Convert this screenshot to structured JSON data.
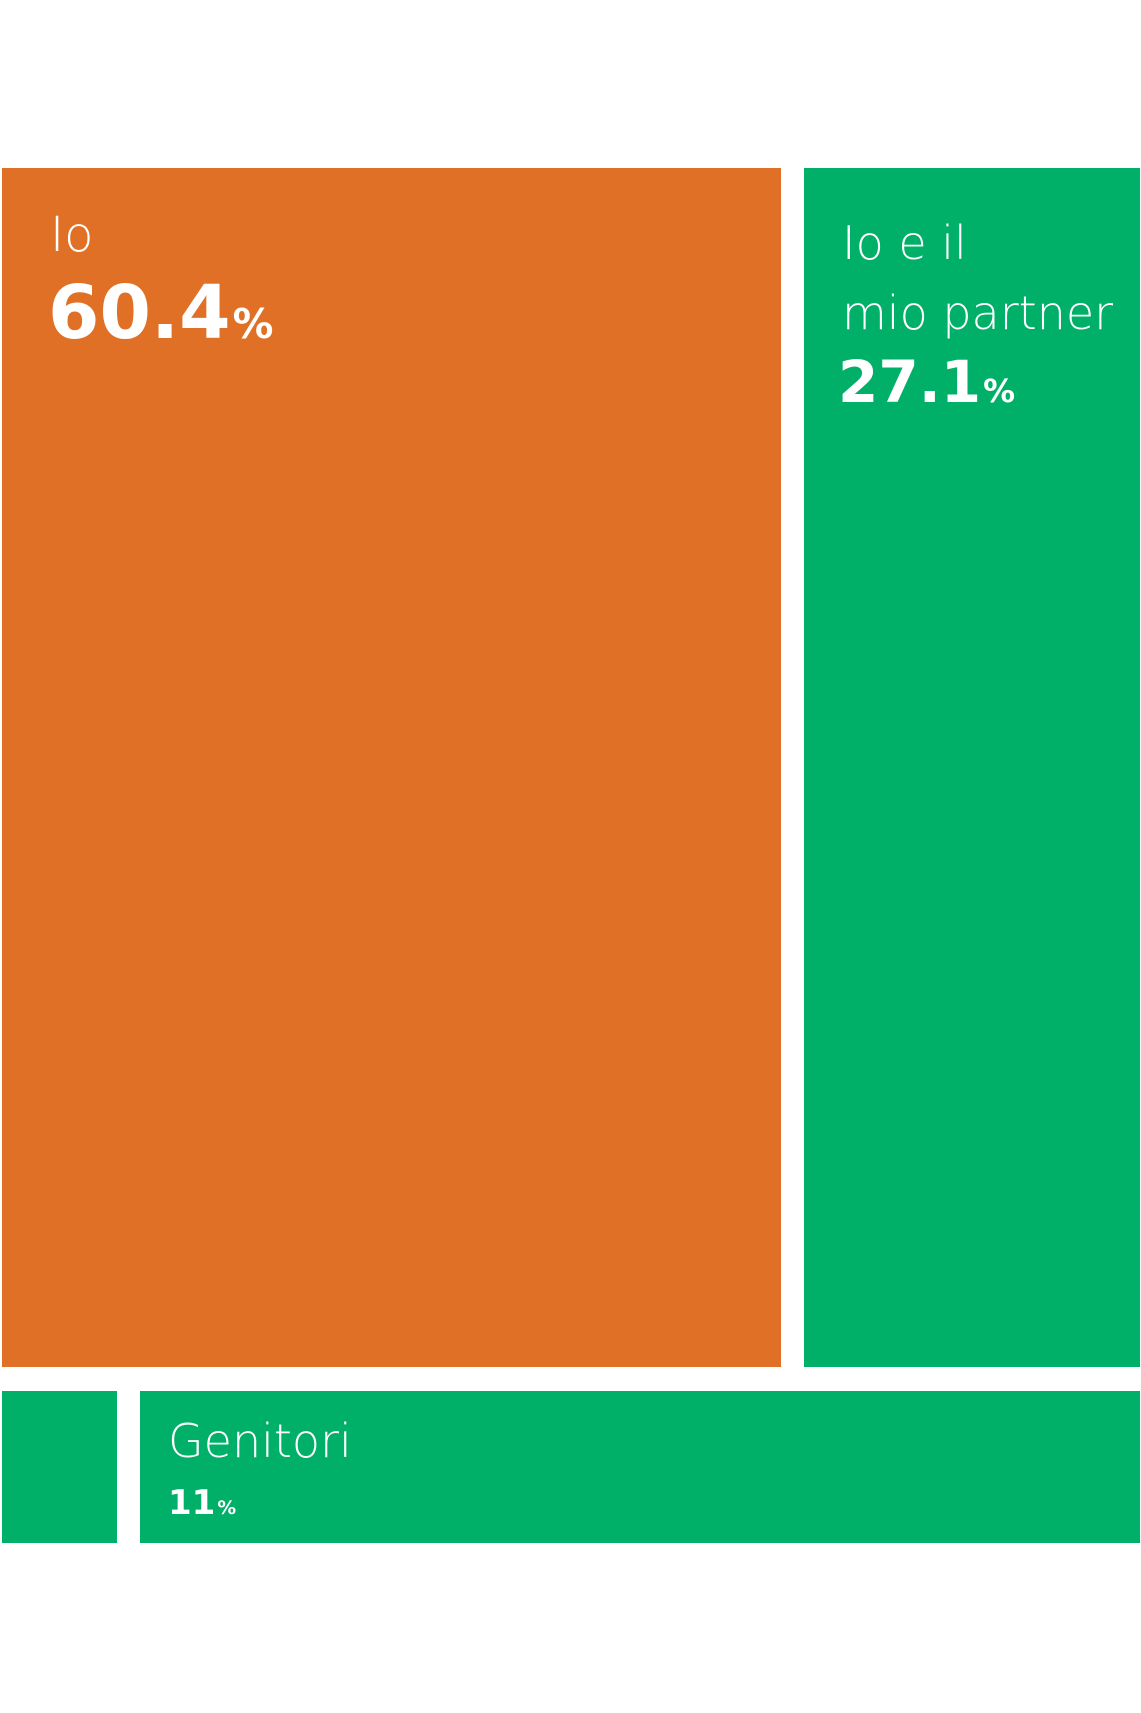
{
  "chart_data": {
    "type": "treemap",
    "unit": "%",
    "items": [
      {
        "label": "Io",
        "value": 60.4,
        "value_text": "60.4",
        "color": "#E07025"
      },
      {
        "label": "Io e il\nmio partner",
        "value": 27.1,
        "value_text": "27.1",
        "color": "#00AF68"
      },
      {
        "label": "Genitori",
        "value": 11,
        "value_text": "11",
        "color": "#00AF68"
      },
      {
        "label": "",
        "value": 1.5,
        "value_text": "",
        "color": "#00AF68"
      }
    ]
  }
}
